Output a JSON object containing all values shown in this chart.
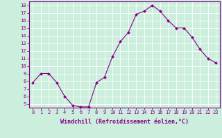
{
  "x": [
    0,
    1,
    2,
    3,
    4,
    5,
    6,
    7,
    8,
    9,
    10,
    11,
    12,
    13,
    14,
    15,
    16,
    17,
    18,
    19,
    20,
    21,
    22,
    23
  ],
  "y": [
    7.8,
    9.0,
    9.0,
    7.8,
    6.0,
    4.8,
    4.6,
    4.6,
    7.8,
    8.5,
    11.2,
    13.2,
    14.4,
    16.8,
    17.2,
    18.0,
    17.2,
    16.0,
    15.0,
    15.0,
    13.8,
    12.2,
    11.0,
    10.4
  ],
  "xlim": [
    -0.5,
    23.5
  ],
  "ylim": [
    4.5,
    18.5
  ],
  "yticks": [
    5,
    6,
    7,
    8,
    9,
    10,
    11,
    12,
    13,
    14,
    15,
    16,
    17,
    18
  ],
  "xticks": [
    0,
    1,
    2,
    3,
    4,
    5,
    6,
    7,
    8,
    9,
    10,
    11,
    12,
    13,
    14,
    15,
    16,
    17,
    18,
    19,
    20,
    21,
    22,
    23
  ],
  "xlabel": "Windchill (Refroidissement éolien,°C)",
  "line_color": "#880088",
  "marker": "D",
  "marker_size": 2.0,
  "bg_color": "#cceedd",
  "grid_color": "#ffffff",
  "axis_color": "#880088",
  "tick_color": "#880088",
  "label_color": "#880088",
  "tick_fontsize": 5.0,
  "xlabel_fontsize": 6.0,
  "linewidth": 0.8
}
